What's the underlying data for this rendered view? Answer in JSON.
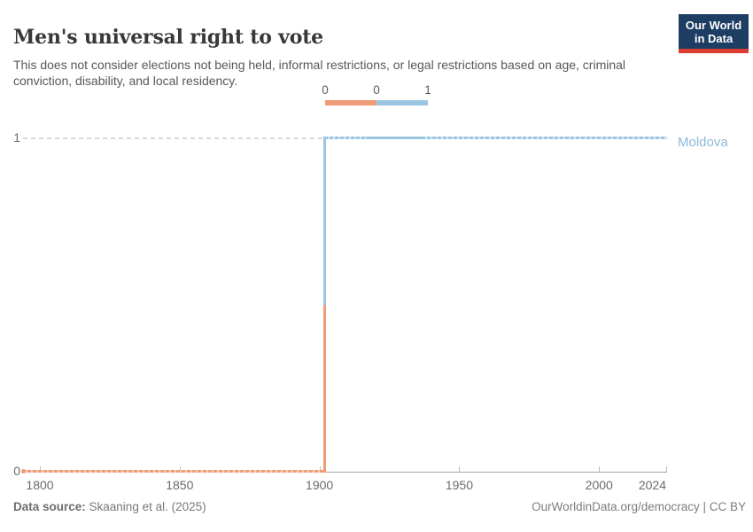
{
  "header": {
    "title": "Men's universal right to vote",
    "subtitle": "This does not consider elections not being held, informal restrictions, or legal restrictions based on age, criminal conviction, disability, and local residency.",
    "logo": {
      "line1": "Our World",
      "line2": "in Data",
      "bg_color": "#1D3D63",
      "bar_color": "#DC3D32"
    }
  },
  "legend": {
    "edge_labels": [
      "0",
      "0",
      "1"
    ],
    "bins": [
      {
        "range": "0 to 0",
        "color": "#F09B76"
      },
      {
        "range": "0 to 1",
        "color": "#9AC6E1"
      }
    ]
  },
  "chart_data": {
    "type": "line",
    "title": "Men's universal right to vote",
    "entity_label": "Moldova",
    "entity_label_color": "#8FB7D6",
    "xlim": [
      1794,
      2024
    ],
    "ylim": [
      0,
      1
    ],
    "x_ticks": [
      1800,
      1850,
      1900,
      1950,
      2000,
      2024
    ],
    "y_ticks": [
      {
        "value": 1,
        "label": "1",
        "grid": "dashed"
      },
      {
        "value": 0,
        "label": "0",
        "grid": "axis"
      }
    ],
    "series": [
      {
        "name": "Moldova",
        "points": [
          {
            "year": 1794,
            "value": 0
          },
          {
            "year": 1902,
            "value": 0
          },
          {
            "year": 1903,
            "value": 1
          },
          {
            "year": 2024,
            "value": 1
          }
        ],
        "segments": [
          {
            "from": 1794,
            "to": 1902,
            "value": 0,
            "style": "dotted",
            "color": "#F09B76",
            "light": "#F8CDB6"
          },
          {
            "from": 1902,
            "to": 1917,
            "value": 1,
            "style": "dotted",
            "color": "#9AC6E1",
            "light": "#D2E6F2"
          },
          {
            "from": 1917,
            "to": 1937,
            "value": 1,
            "style": "solid",
            "color": "#9AC6E1",
            "light": "#9AC6E1"
          },
          {
            "from": 1937,
            "to": 2024,
            "value": 1,
            "style": "dotted",
            "color": "#9AC6E1",
            "light": "#D2E6F2"
          }
        ]
      }
    ]
  },
  "footer": {
    "source_label": "Data source:",
    "source_value": " Skaaning et al. (2025)",
    "credit": "OurWorldinData.org/democracy | CC BY"
  }
}
